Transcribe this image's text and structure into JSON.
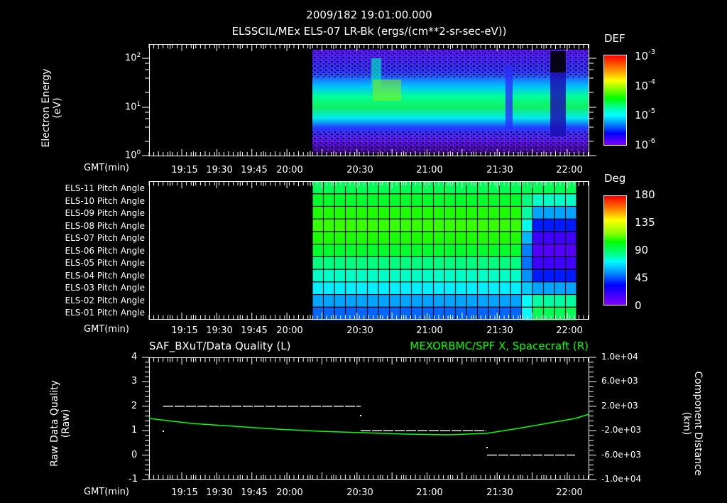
{
  "header": {
    "timestamp": "2009/182 19:01:00.000",
    "subtitle": "ELSSCIL/MEx ELS-07 LR-Bk  (ergs/(cm**2-sr-sec-eV))"
  },
  "time_axis": {
    "label": "GMT(min)",
    "ticks": [
      "19:15",
      "19:30",
      "19:45",
      "20:00",
      "20:30",
      "21:00",
      "21:30",
      "22:00"
    ]
  },
  "panel_spectrogram": {
    "ylabel_line1": "Electron Energy",
    "ylabel_line2": "(eV)",
    "yticks": [
      "10",
      "10",
      "10"
    ],
    "ytick_exponents": [
      "2",
      "1",
      "0"
    ],
    "colorbar": {
      "title": "DEF",
      "labels": [
        "10",
        "10",
        "10",
        "10"
      ],
      "exponents": [
        "-3",
        "-4",
        "-5",
        "-6"
      ]
    }
  },
  "panel_pitch": {
    "rows": [
      "ELS-11 Pitch Angle",
      "ELS-10 Pitch Angle",
      "ELS-09 Pitch Angle",
      "ELS-08 Pitch Angle",
      "ELS-07 Pitch Angle",
      "ELS-06 Pitch Angle",
      "ELS-05 Pitch Angle",
      "ELS-04 Pitch Angle",
      "ELS-03 Pitch Angle",
      "ELS-02 Pitch Angle",
      "ELS-01 Pitch Angle"
    ],
    "colorbar": {
      "title": "Deg",
      "labels": [
        "180",
        "135",
        "90",
        "45",
        "0"
      ]
    }
  },
  "panel_quality": {
    "title_left": "SAF_BXuT/Data Quality (L)",
    "title_right": "MEXORBMC/SPF X, Spacecraft (R)",
    "ylabel_left_line1": "Raw Data Quality",
    "ylabel_left_line2": "(Raw)",
    "yticks_left": [
      "4",
      "3",
      "2",
      "1",
      "0",
      "-1"
    ],
    "ylabel_right_line1": "Component Distance",
    "ylabel_right_line2": "(km)",
    "yticks_right": [
      "1.0e+04",
      "6.0e+03",
      "2.0e+03",
      "-2.0e+03",
      "-6.0e+03",
      "-1.0e+04"
    ]
  },
  "colors": {
    "background": "#000000",
    "axis": "#ffffff",
    "spacecraft_trace": "#00ff00",
    "quality_trace": "#ffffff"
  },
  "chart_data": [
    {
      "type": "heatmap",
      "title": "ELSSCIL/MEx ELS-07 LR-Bk (ergs/(cm**2-sr-sec-eV))",
      "xlabel": "GMT(min)",
      "ylabel": "Electron Energy (eV)",
      "yscale": "log",
      "ylim": [
        1,
        150
      ],
      "xlim": [
        "19:01",
        "22:08"
      ],
      "x_ticks": [
        "19:15",
        "19:30",
        "19:45",
        "20:00",
        "20:30",
        "21:00",
        "21:30",
        "22:00"
      ],
      "data_start": "20:13",
      "colorbar": {
        "label": "DEF",
        "scale": "log",
        "range": [
          1e-06,
          0.001
        ]
      },
      "annotations": [
        {
          "time": "20:13-21:23",
          "feature": "band peak ~5-20 eV, DEF ~1e-4 green"
        },
        {
          "time": "20:35",
          "feature": "energy spike up to ~100 eV"
        },
        {
          "time": "21:33-21:48",
          "feature": "enhanced band ~4-10 eV"
        },
        {
          "time": "21:58-22:08",
          "feature": "band ~6-30 eV"
        }
      ]
    },
    {
      "type": "heatmap",
      "title": "Pitch Angle",
      "xlabel": "GMT(min)",
      "categories": [
        "ELS-11",
        "ELS-10",
        "ELS-09",
        "ELS-08",
        "ELS-07",
        "ELS-06",
        "ELS-05",
        "ELS-04",
        "ELS-03",
        "ELS-02",
        "ELS-01"
      ],
      "colorbar": {
        "label": "Deg",
        "range": [
          0,
          180
        ],
        "ticks": [
          0,
          45,
          90,
          135,
          180
        ]
      },
      "segments": [
        {
          "time": "20:13-21:30",
          "values_deg": [
            95,
            100,
            110,
            115,
            110,
            100,
            90,
            80,
            70,
            60,
            50
          ]
        },
        {
          "time": "21:35-22:05",
          "values_deg": [
            95,
            80,
            60,
            35,
            15,
            10,
            15,
            35,
            60,
            85,
            95
          ]
        }
      ]
    },
    {
      "type": "line",
      "title_left": "SAF_BXuT/Data Quality (L)",
      "title_right": "MEXORBMC/SPF X, Spacecraft (R)",
      "xlabel": "GMT(min)",
      "ylabel": "Raw Data Quality (Raw)",
      "ylabel_right": "Component Distance (km)",
      "ylim": [
        -1,
        4
      ],
      "ylim_right": [
        -10000,
        10000
      ],
      "series": [
        {
          "name": "Data Quality (L)",
          "color": "#ffffff",
          "x": [
            "19:10",
            "20:30",
            "20:30",
            "21:27",
            "21:27",
            "22:04"
          ],
          "values": [
            2,
            2,
            1,
            1,
            0,
            0
          ]
        },
        {
          "name": "SPF X Spacecraft (R)",
          "color": "#00ff00",
          "x": [
            "19:01",
            "19:30",
            "20:00",
            "20:30",
            "21:00",
            "21:27",
            "21:45",
            "22:08"
          ],
          "values": [
            -1800,
            -2600,
            -3300,
            -4000,
            -4400,
            -4400,
            -3000,
            -100
          ]
        }
      ]
    }
  ]
}
